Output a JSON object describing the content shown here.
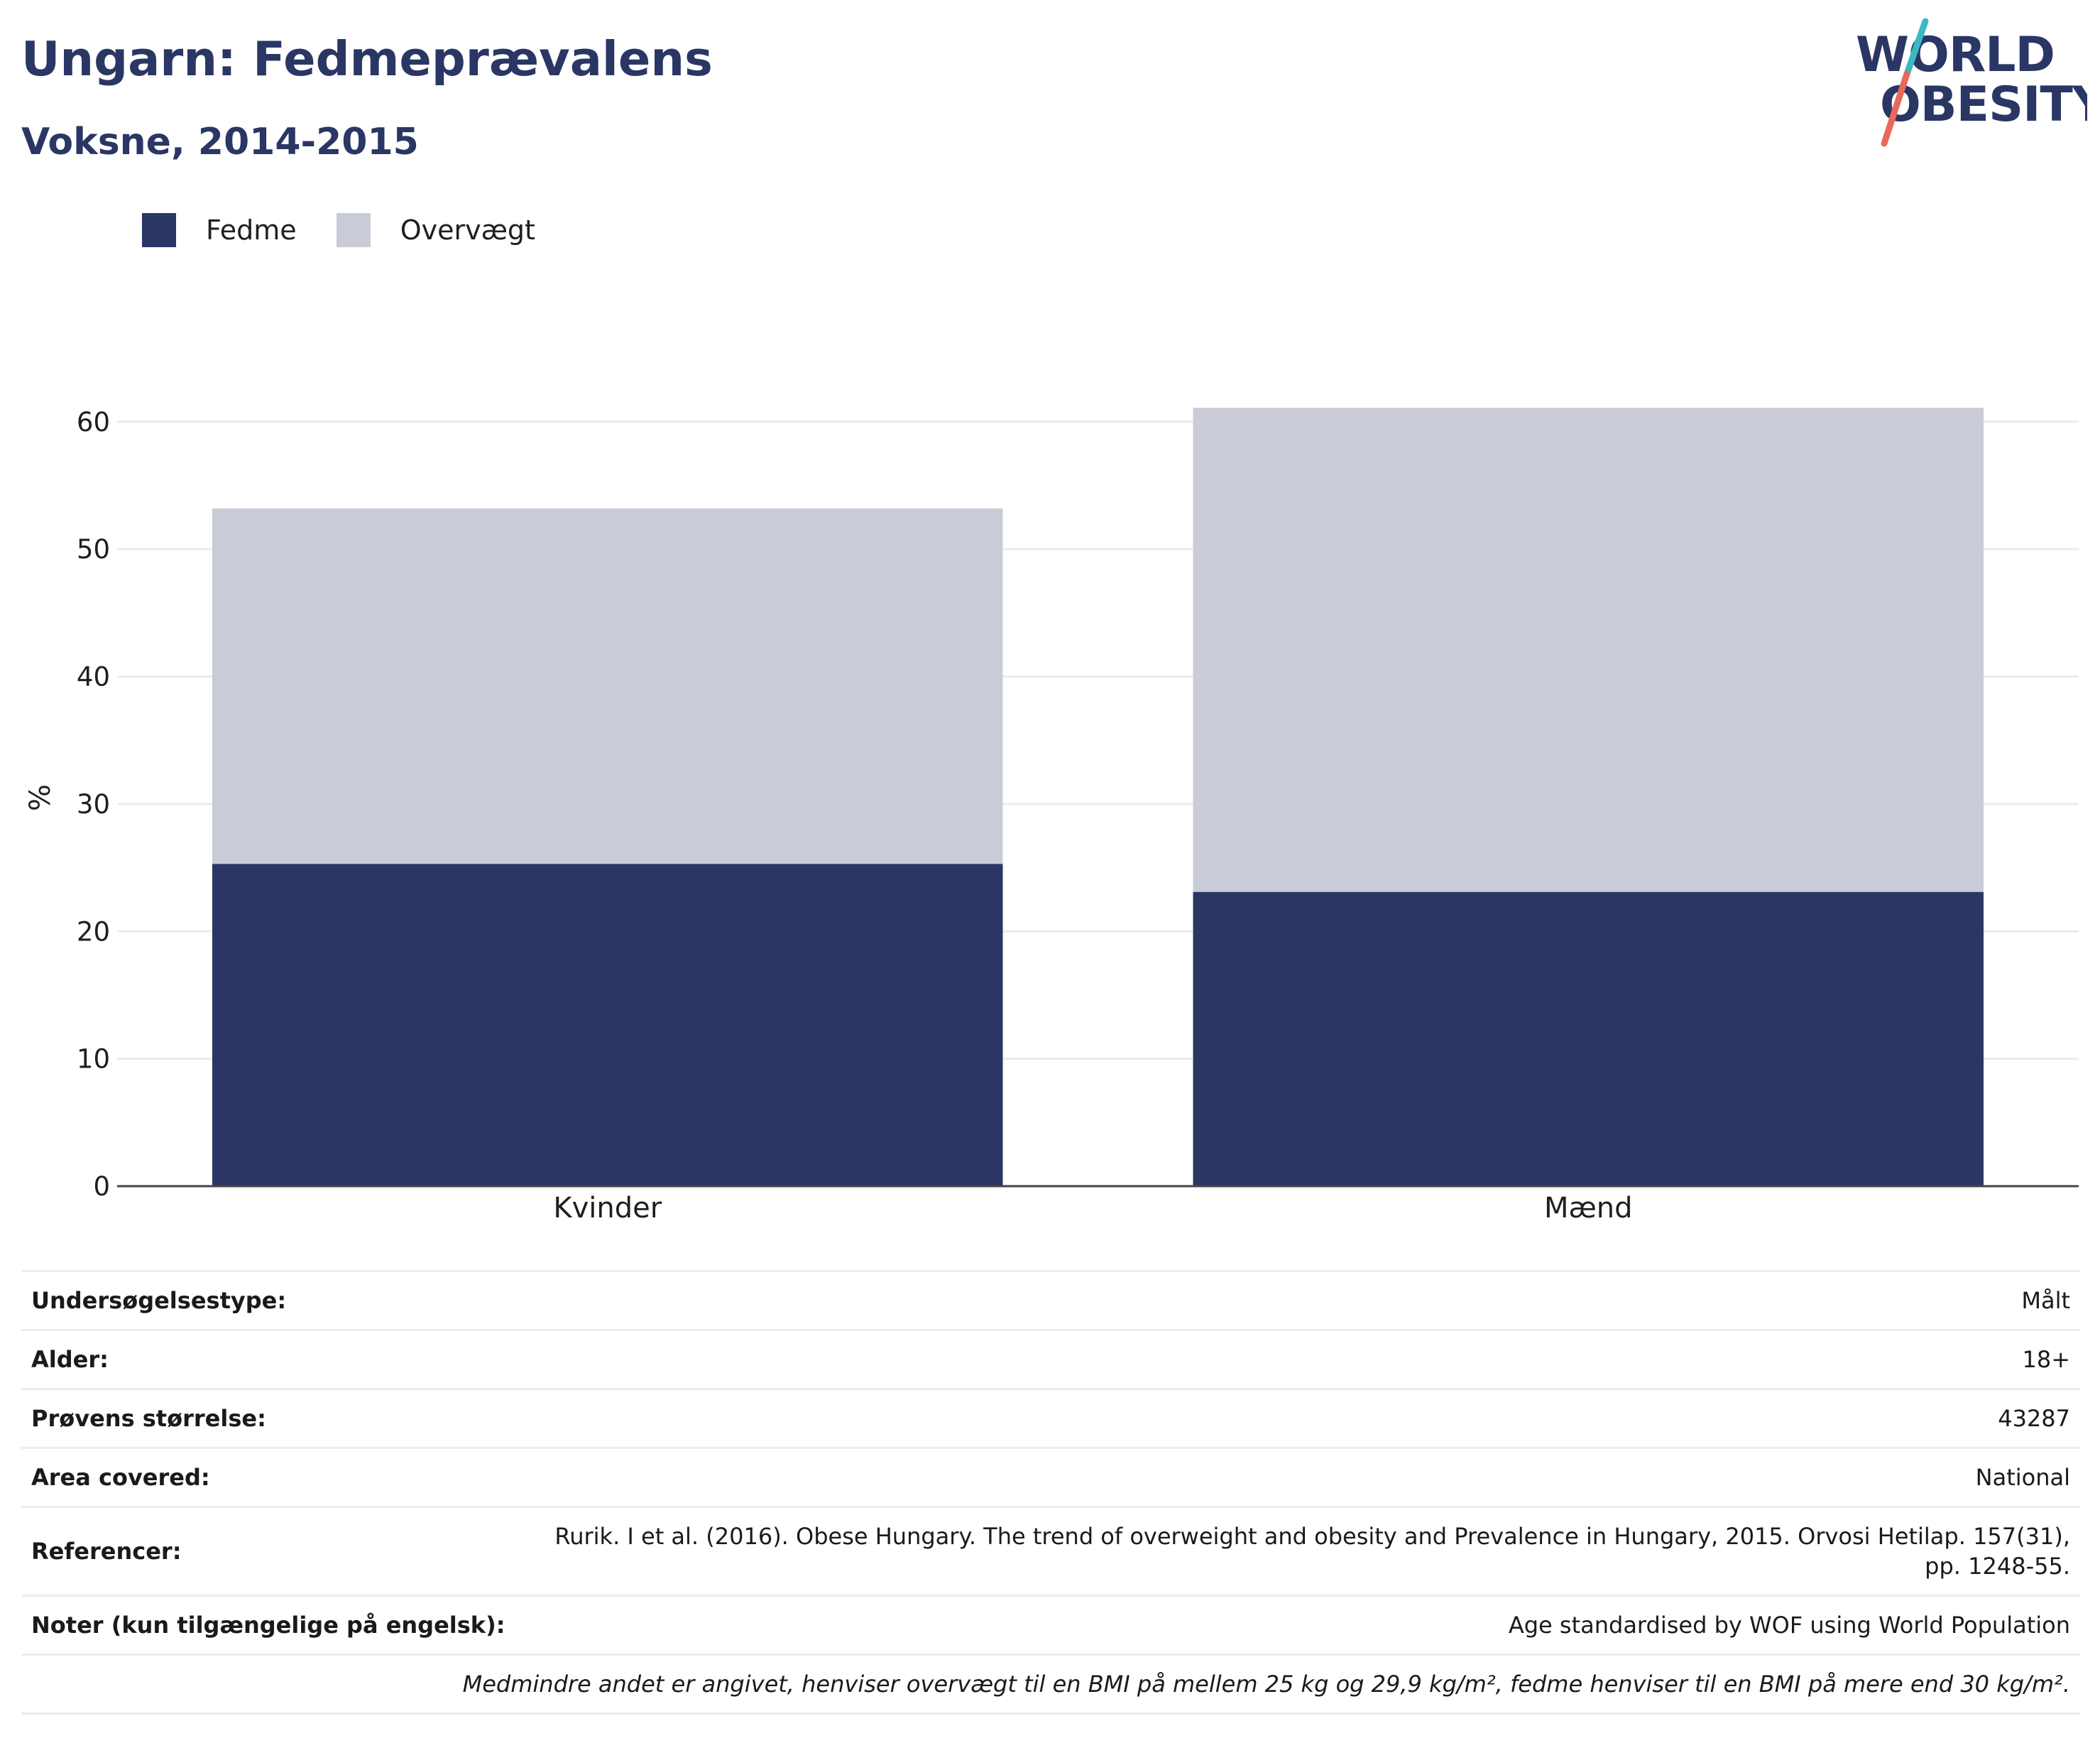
{
  "header": {
    "title": "Ungarn: Fedmeprævalens",
    "subtitle": "Voksne, 2014-2015"
  },
  "logo": {
    "line1": "WORLD",
    "line2": "OBESITY",
    "text_color": "#2a3664",
    "slash_top_color": "#3bb8c3",
    "slash_bottom_color": "#e8685a"
  },
  "colors": {
    "fedme": "#2a3664",
    "overvaegt": "#c9cbd7",
    "grid": "#ebebeb",
    "axis": "#444444"
  },
  "chart_data": {
    "type": "bar",
    "stacked": true,
    "categories": [
      "Kvinder",
      "Mænd"
    ],
    "series": [
      {
        "name": "Fedme",
        "values": [
          25.3,
          23.1
        ]
      },
      {
        "name": "Overvægt",
        "values": [
          27.9,
          38.0
        ]
      }
    ],
    "title": "",
    "xlabel": "",
    "ylabel": "%",
    "ylim": [
      0,
      63
    ],
    "yticks": [
      0,
      10,
      20,
      30,
      40,
      50,
      60
    ],
    "grid": true,
    "legend_position": "top-left"
  },
  "table": {
    "rows": [
      {
        "label": "Undersøgelsestype:",
        "value": "Målt"
      },
      {
        "label": "Alder:",
        "value": "18+"
      },
      {
        "label": "Prøvens størrelse:",
        "value": "43287"
      },
      {
        "label": "Area covered:",
        "value": "National"
      },
      {
        "label": "Referencer:",
        "value": "Rurik. I et al. (2016). Obese Hungary. The trend of overweight and obesity and Prevalence in Hungary, 2015. Orvosi Hetilap. 157(31), pp. 1248-55."
      },
      {
        "label": "Noter (kun tilgængelige på engelsk):",
        "value": "Age standardised by WOF using World Population"
      }
    ],
    "footnote": "Medmindre andet er angivet, henviser overvægt til en BMI på mellem 25 kg og 29,9 kg/m², fedme henviser til en BMI på mere end 30 kg/m²."
  }
}
